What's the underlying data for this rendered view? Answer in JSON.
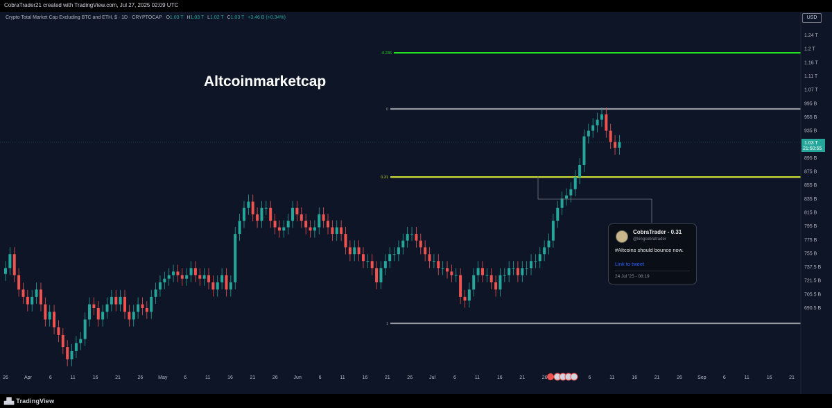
{
  "header": {
    "attribution": "CobraTrader21 created with TradingView.com, Jul 27, 2025 02:09 UTC",
    "symbol": "Crypto Total Market Cap Excluding BTC and ETH, $ · 1D · CRYPTOCAP",
    "ohlc": {
      "o_label": "O",
      "o": "1.03 T",
      "h_label": "H",
      "h": "1.03 T",
      "l_label": "L",
      "l": "1.02 T",
      "c_label": "C",
      "c": "1.03 T",
      "change": "+3.46 B (+0.34%)"
    }
  },
  "currency_button": "USD",
  "annotation": "Altcoinmarketcap",
  "price_tag": {
    "value": "1.03 T",
    "countdown": "21:50:55"
  },
  "tweet": {
    "name": "CobraTrader - 0.31",
    "handle": "@kingcobratrader",
    "text": "#Altcoins should bounce now.",
    "link": "Link to tweet",
    "date": "24 Jul '25 - 08:19"
  },
  "footer": {
    "brand": "TradingView"
  },
  "colors": {
    "background": "#0d1526",
    "up": "#26a69a",
    "down": "#ef5350",
    "fib_green": "#22dd22",
    "fib_yellow": "#cddc39",
    "fib_grey": "#9598a1"
  },
  "chart_data": {
    "type": "candlestick",
    "y_axis": {
      "scale": "log",
      "ticks": [
        "1.24 T",
        "1.2 T",
        "1.16 T",
        "1.11 T",
        "1.07 T",
        "995 B",
        "955 B",
        "935 B",
        "915 B",
        "895 B",
        "875 B",
        "855 B",
        "835 B",
        "815 B",
        "795 B",
        "775 B",
        "755 B",
        "737.5 B",
        "721.5 B",
        "705.5 B",
        "690.5 B"
      ]
    },
    "x_axis": {
      "ticks": [
        "26",
        "Apr",
        "6",
        "11",
        "16",
        "21",
        "26",
        "May",
        "6",
        "11",
        "16",
        "21",
        "26",
        "Jun",
        "6",
        "11",
        "16",
        "21",
        "26",
        "Jul",
        "6",
        "11",
        "16",
        "21",
        "26",
        "Aug",
        "6",
        "11",
        "16",
        "21",
        "26",
        "Sep",
        "6",
        "11",
        "16",
        "21"
      ]
    },
    "fib_levels": [
      {
        "label": "-0.236",
        "value": 1.2,
        "color": "#22dd22"
      },
      {
        "label": "0",
        "value": 1.09,
        "color": "#9598a1"
      },
      {
        "label": "0.31",
        "value": 0.97,
        "color": "#cddc39"
      },
      {
        "label": "1",
        "value": 0.755,
        "color": "#9598a1"
      }
    ],
    "last_price": 1.03,
    "closes_trillions": [
      0.83,
      0.85,
      0.82,
      0.8,
      0.79,
      0.78,
      0.79,
      0.8,
      0.78,
      0.76,
      0.77,
      0.75,
      0.74,
      0.725,
      0.71,
      0.72,
      0.73,
      0.735,
      0.76,
      0.78,
      0.775,
      0.76,
      0.77,
      0.78,
      0.79,
      0.78,
      0.79,
      0.77,
      0.76,
      0.77,
      0.78,
      0.775,
      0.77,
      0.79,
      0.8,
      0.81,
      0.815,
      0.82,
      0.825,
      0.82,
      0.815,
      0.82,
      0.83,
      0.82,
      0.815,
      0.82,
      0.81,
      0.8,
      0.81,
      0.82,
      0.8,
      0.81,
      0.88,
      0.9,
      0.92,
      0.93,
      0.91,
      0.9,
      0.92,
      0.92,
      0.9,
      0.89,
      0.885,
      0.89,
      0.9,
      0.92,
      0.91,
      0.9,
      0.89,
      0.885,
      0.89,
      0.91,
      0.9,
      0.89,
      0.88,
      0.89,
      0.88,
      0.86,
      0.85,
      0.86,
      0.85,
      0.84,
      0.84,
      0.83,
      0.81,
      0.83,
      0.84,
      0.85,
      0.85,
      0.86,
      0.87,
      0.88,
      0.88,
      0.87,
      0.86,
      0.85,
      0.84,
      0.84,
      0.83,
      0.83,
      0.825,
      0.82,
      0.82,
      0.79,
      0.785,
      0.8,
      0.82,
      0.83,
      0.82,
      0.82,
      0.81,
      0.8,
      0.82,
      0.82,
      0.83,
      0.83,
      0.82,
      0.83,
      0.83,
      0.84,
      0.84,
      0.85,
      0.86,
      0.87,
      0.9,
      0.92,
      0.935,
      0.94,
      0.95,
      0.97,
      0.99,
      1.04,
      1.05,
      1.06,
      1.07,
      1.08,
      1.05,
      1.03,
      1.02,
      1.03
    ]
  }
}
